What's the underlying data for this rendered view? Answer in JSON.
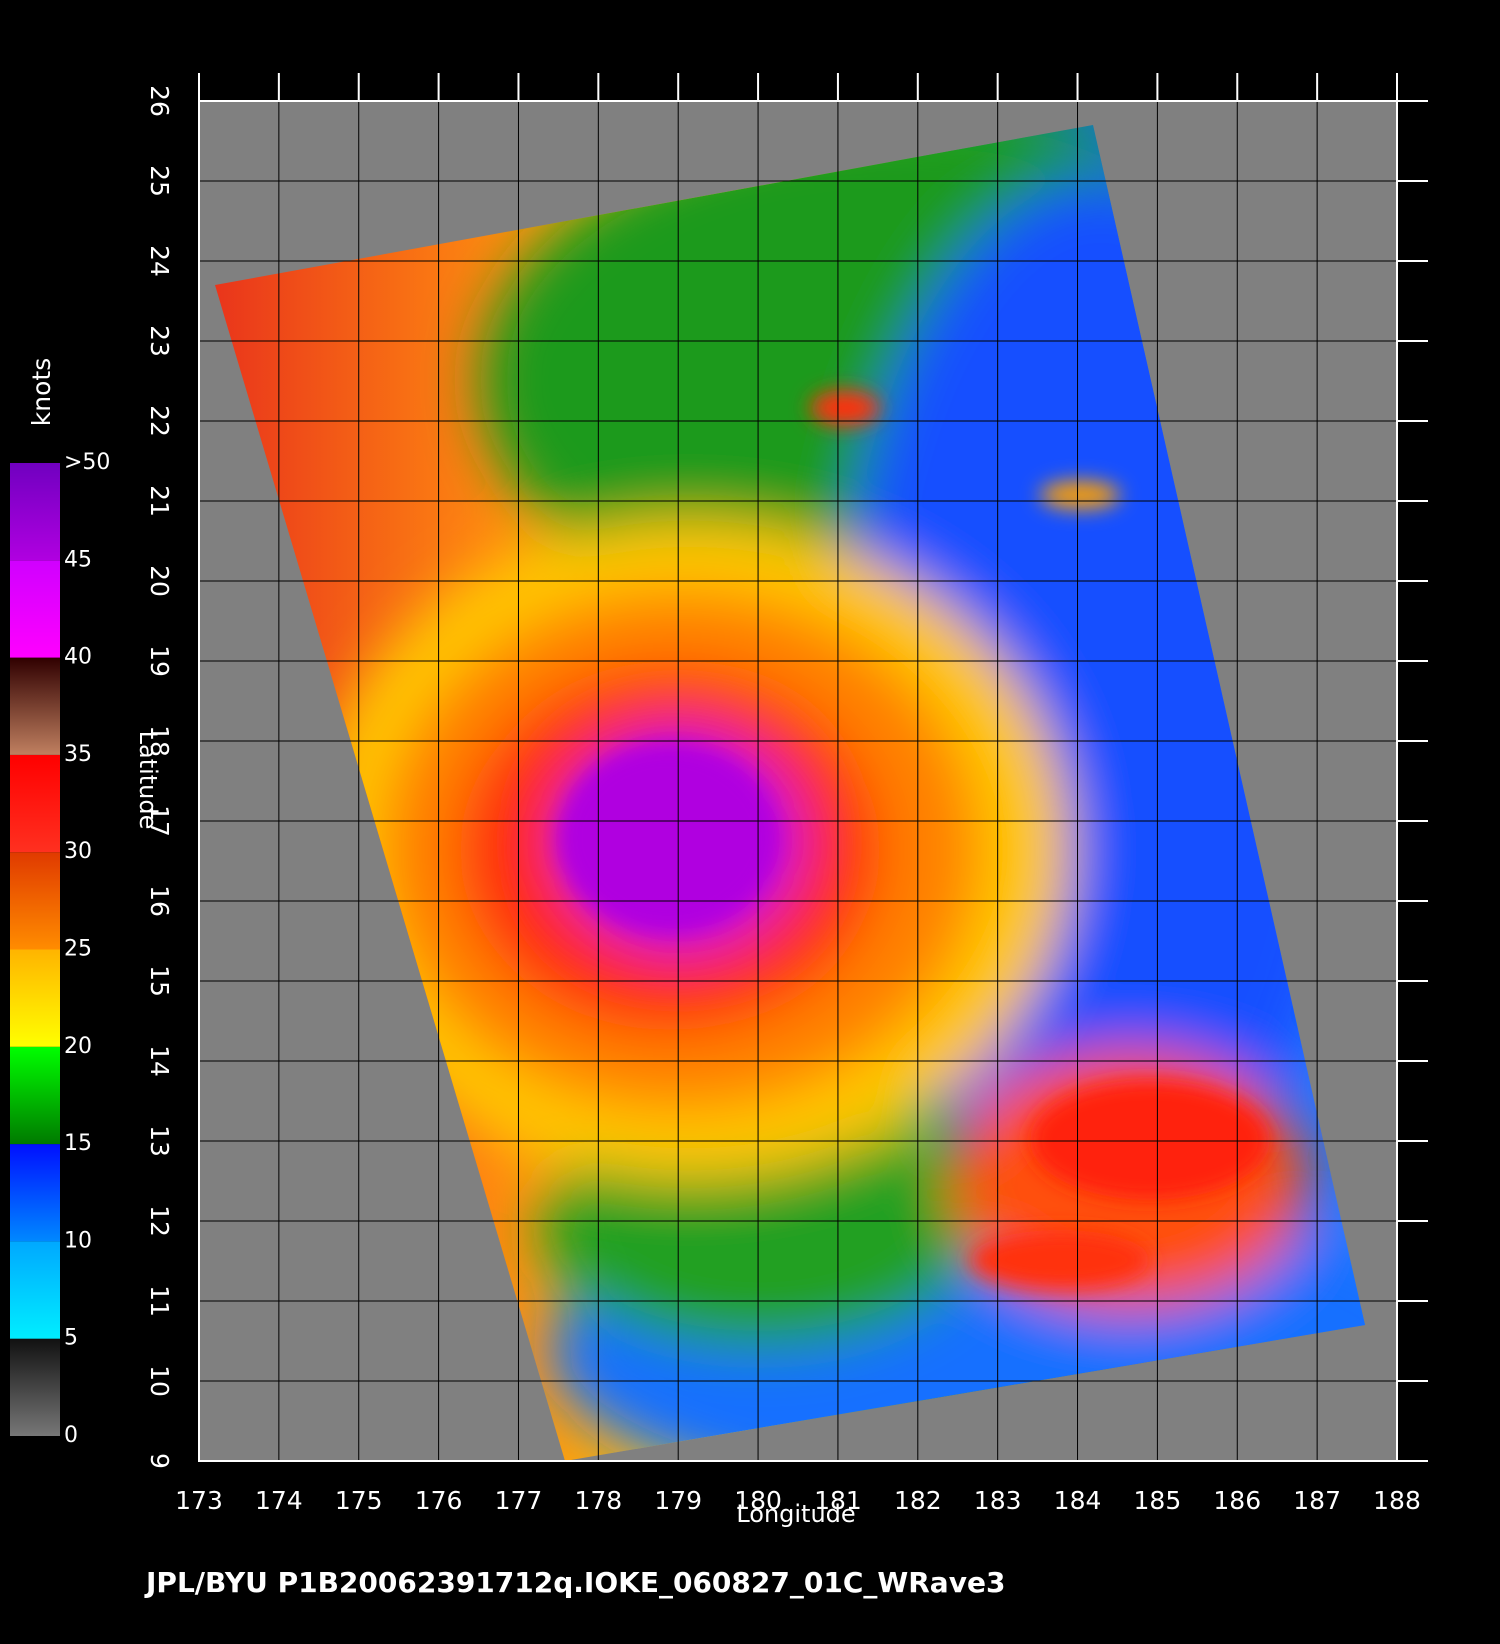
{
  "chart_data": {
    "type": "map",
    "title": "JPL/BYU  P1B20062391712q.IOKE_060827_01C_WRave3",
    "x_label": "Longitude",
    "y_label": "Latitude",
    "xlim": [
      173,
      188
    ],
    "ylim": [
      9,
      26
    ],
    "xticks": [
      173,
      174,
      175,
      176,
      177,
      178,
      179,
      180,
      181,
      182,
      183,
      184,
      185,
      186,
      187,
      188
    ],
    "yticks": [
      9,
      10,
      11,
      12,
      13,
      14,
      15,
      16,
      17,
      18,
      19,
      20,
      21,
      22,
      23,
      24,
      25,
      26
    ],
    "grid": true,
    "colorbar": {
      "label": "knots",
      "lim": [
        0,
        50
      ],
      "ticks": [
        0,
        5,
        10,
        15,
        20,
        25,
        30,
        35,
        40,
        45,
        {
          "value": 50,
          "label": ">50"
        }
      ],
      "colors": [
        [
          "#777777",
          "#111111"
        ],
        [
          "#00eeff",
          "#00a8ff"
        ],
        [
          "#0088ff",
          "#0010ff"
        ],
        [
          "#007a00",
          "#00ff00"
        ],
        [
          "#ffff00",
          "#ffb400"
        ],
        [
          "#ff8c00",
          "#e03a00"
        ],
        [
          "#ff3020",
          "#ff0000"
        ],
        [
          "#c08060",
          "#300000"
        ],
        [
          "#ff00ff",
          "#d000ff"
        ],
        [
          "#b000e0",
          "#7000c0"
        ]
      ]
    }
  }
}
